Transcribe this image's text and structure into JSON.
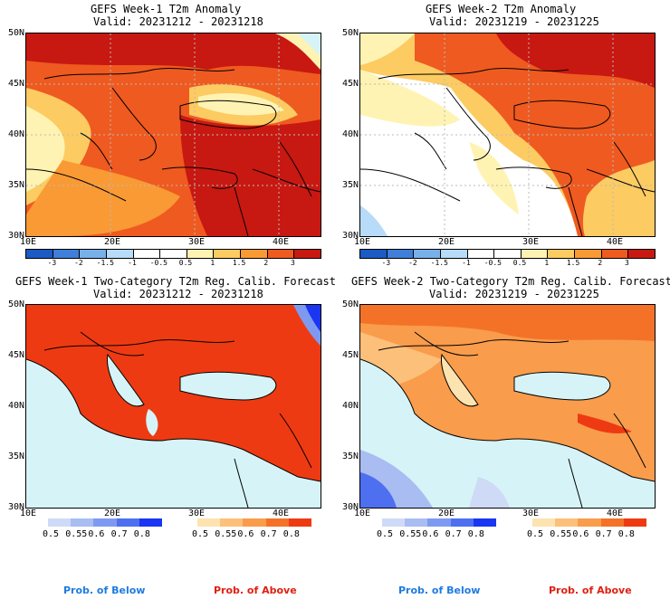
{
  "panels": [
    {
      "title1": "GEFS Week-1 T2m Anomaly",
      "title2": "Valid: 20231212 - 20231218"
    },
    {
      "title1": "GEFS Week-2 T2m Anomaly",
      "title2": "Valid: 20231219 - 20231225"
    },
    {
      "title1": "GEFS Week-1 Two-Category T2m Reg. Calib. Forecast",
      "title2": "Valid: 20231212 - 20231218"
    },
    {
      "title1": "GEFS Week-2 Two-Category T2m Reg. Calib. Forecast",
      "title2": "Valid: 20231219 - 20231225"
    }
  ],
  "lat_labels": [
    "50N",
    "45N",
    "40N",
    "35N",
    "30N"
  ],
  "lon_labels": [
    "10E",
    "20E",
    "30E",
    "40E"
  ],
  "anomaly_colorbar": {
    "labels": [
      "-3",
      "-2",
      "-1.5",
      "-1",
      "-0.5",
      "0.5",
      "1",
      "1.5",
      "2",
      "3"
    ],
    "colors": [
      "#1a5bc4",
      "#3f7fd9",
      "#78b0ea",
      "#b7dbf8",
      "#ffffff",
      "#ffffff",
      "#fff3b3",
      "#fccb62",
      "#f99a35",
      "#ef5a20",
      "#c81812"
    ]
  },
  "prob_below": {
    "labels": [
      "0.5",
      "0.55",
      "0.6",
      "0.7",
      "0.8"
    ],
    "colors": [
      "#cfdaf7",
      "#a9bdf2",
      "#7e9af0",
      "#4e6ff0",
      "#1a36f0"
    ]
  },
  "prob_above": {
    "labels": [
      "0.5",
      "0.55",
      "0.6",
      "0.7",
      "0.8"
    ],
    "colors": [
      "#fde3b0",
      "#fcc07a",
      "#f99c4c",
      "#f47228",
      "#ee3a12"
    ]
  },
  "footer": {
    "below": "Prob. of Below",
    "above": "Prob. of Above"
  },
  "colors": {
    "below_text": "#1e7be0",
    "above_text": "#e02010",
    "sea": "#d6f4f7"
  }
}
